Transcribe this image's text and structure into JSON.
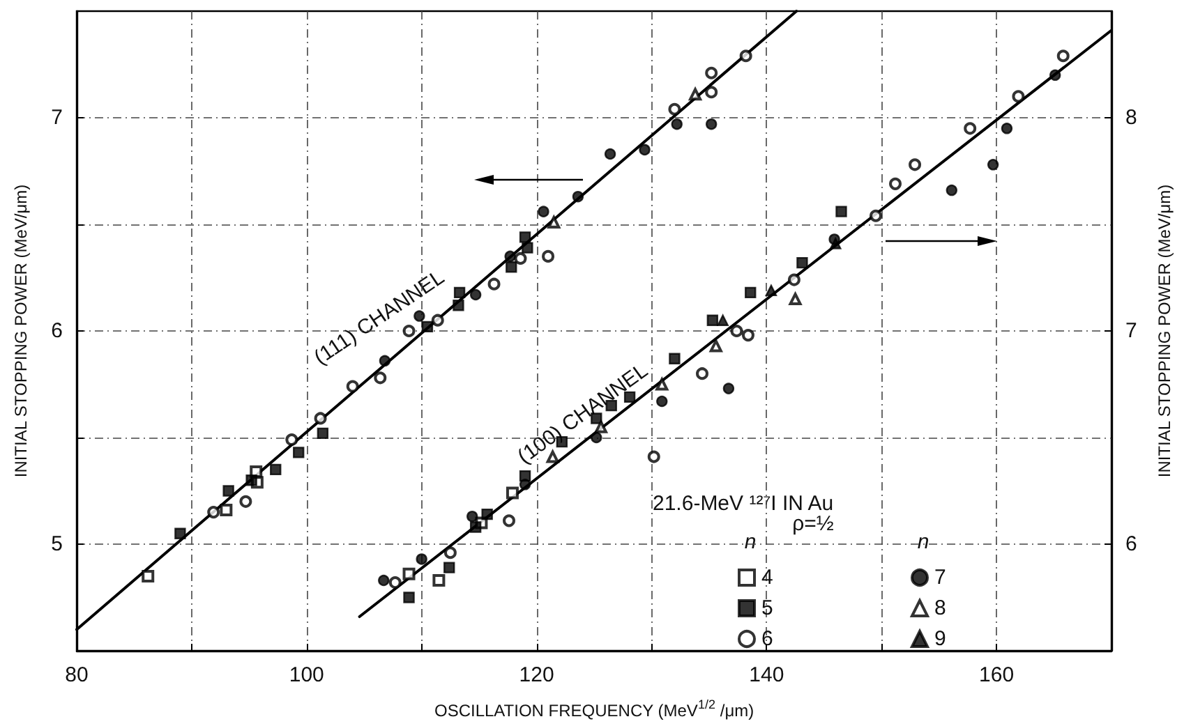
{
  "chart_data": {
    "type": "scatter",
    "xlabel": "OSCILLATION FREQUENCY (MeV$^{1/2}$ /μm)",
    "ylabel": "INITIAL STOPPING POWER (MeV/μm)",
    "y2label": "INITIAL STOPPING POWER (MeV/μm)",
    "legend_title": "21.6-MeV ¹²⁷I IN Au",
    "annotations": [
      "(111) CHANNEL",
      "(100) CHANNEL",
      "ρ=½",
      "n",
      "n"
    ],
    "xlim": [
      80,
      170
    ],
    "xticks": [
      80,
      {
        "value": 90,
        "label": null
      },
      100,
      {
        "value": 110,
        "label": null
      },
      120,
      {
        "value": 130,
        "label": null
      },
      140,
      {
        "value": 150,
        "label": null
      },
      160
    ],
    "ylim": [
      4.5,
      7.5
    ],
    "yticks": [
      5,
      {
        "value": 5.5,
        "label": null
      },
      6,
      {
        "value": 6.5,
        "label": null
      },
      7
    ],
    "y2lim": [
      5.5,
      8.5
    ],
    "y2ticks": [
      6,
      7,
      8
    ],
    "grid": true,
    "legend": "bottom right",
    "series": [
      {
        "name": "4",
        "color": "#000000",
        "marker": "square-open",
        "x": [
          86.2,
          93.0,
          95.6,
          95.7
        ],
        "values": [
          4.85,
          5.16,
          5.34,
          5.29
        ]
      },
      {
        "name": "5",
        "color": "#000000",
        "marker": "square",
        "x": [
          89.0,
          93.2,
          95.2,
          97.3,
          99.3,
          101.4,
          110.5,
          113.2,
          113.3,
          117.8,
          119.0,
          119.2
        ],
        "values": [
          5.05,
          5.25,
          5.3,
          5.35,
          5.43,
          5.52,
          6.02,
          6.12,
          6.18,
          6.3,
          6.44,
          6.39
        ]
      },
      {
        "name": "6",
        "color": "#000000",
        "marker": "circle-open",
        "x": [
          91.9,
          94.7,
          98.7,
          101.2,
          104.0,
          106.4,
          108.9,
          111.4,
          116.3,
          118.6,
          121.0,
          132.0,
          135.2,
          135.2,
          138.2
        ],
        "values": [
          5.15,
          5.2,
          5.49,
          5.59,
          5.74,
          5.78,
          6.0,
          6.05,
          6.22,
          6.34,
          6.35,
          7.04,
          7.21,
          7.12,
          7.29
        ]
      },
      {
        "name": "7",
        "color": "#000000",
        "marker": "circle",
        "x": [
          106.8,
          109.8,
          114.7,
          117.7,
          120.6,
          123.6,
          126.4,
          129.4,
          132.2,
          135.2
        ],
        "values": [
          5.86,
          6.07,
          6.17,
          6.35,
          6.56,
          6.63,
          6.83,
          6.85,
          6.97,
          6.97
        ]
      },
      {
        "name": "8",
        "color": "#000000",
        "marker": "triangle-open",
        "x": [
          121.5,
          133.8
        ],
        "values": [
          6.51,
          7.11
        ]
      },
      {
        "color": "#000000",
        "marker": "square-open",
        "axis": "y2",
        "x": [
          108.9,
          111.5,
          115.2,
          117.9
        ],
        "values": [
          5.86,
          5.83,
          6.1,
          6.24
        ]
      },
      {
        "color": "#000000",
        "marker": "square",
        "axis": "y2",
        "x": [
          108.9,
          112.4,
          114.7,
          115.7,
          119.0,
          122.2,
          125.2,
          126.5,
          128.1,
          132.0,
          135.3,
          138.6,
          143.1,
          146.5
        ],
        "values": [
          5.75,
          5.89,
          6.08,
          6.14,
          6.32,
          6.48,
          6.59,
          6.65,
          6.69,
          6.87,
          7.05,
          7.18,
          7.32,
          7.56
        ]
      },
      {
        "color": "#000000",
        "marker": "circle-open",
        "axis": "y2",
        "x": [
          107.7,
          112.5,
          117.6,
          130.2,
          134.4,
          137.4,
          138.4,
          142.4,
          149.5,
          151.2,
          152.9,
          157.7,
          161.9,
          165.8
        ],
        "values": [
          5.82,
          5.96,
          6.11,
          6.41,
          6.8,
          7.0,
          6.98,
          7.24,
          7.54,
          7.69,
          7.78,
          7.95,
          8.1,
          8.29
        ]
      },
      {
        "color": "#000000",
        "marker": "circle",
        "axis": "y2",
        "x": [
          106.7,
          110.0,
          114.4,
          119.0,
          125.2,
          130.9,
          136.7,
          145.9,
          156.1,
          159.7,
          160.9,
          165.1
        ],
        "values": [
          5.83,
          5.93,
          6.13,
          6.28,
          6.5,
          6.67,
          6.73,
          7.43,
          7.66,
          7.78,
          7.95,
          8.2
        ]
      },
      {
        "color": "#000000",
        "marker": "triangle-open",
        "axis": "y2",
        "x": [
          121.4,
          125.6,
          130.9,
          135.6,
          142.5
        ],
        "values": [
          6.41,
          6.55,
          6.75,
          6.93,
          7.15
        ]
      },
      {
        "name": "9",
        "color": "#000000",
        "marker": "triangle",
        "axis": "y2",
        "x": [
          136.2,
          140.4,
          146.0
        ],
        "values": [
          7.05,
          7.19,
          7.41
        ]
      },
      {
        "type": "line",
        "color": "#000000",
        "marker": "none",
        "line_style": "solid",
        "x": [
          80,
          142.6
        ],
        "values": [
          4.6,
          7.5
        ]
      },
      {
        "type": "line",
        "color": "#000000",
        "marker": "none",
        "line_style": "solid",
        "axis": "y2",
        "x": [
          104.6,
          170
        ],
        "values": [
          5.66,
          8.41
        ]
      }
    ]
  }
}
